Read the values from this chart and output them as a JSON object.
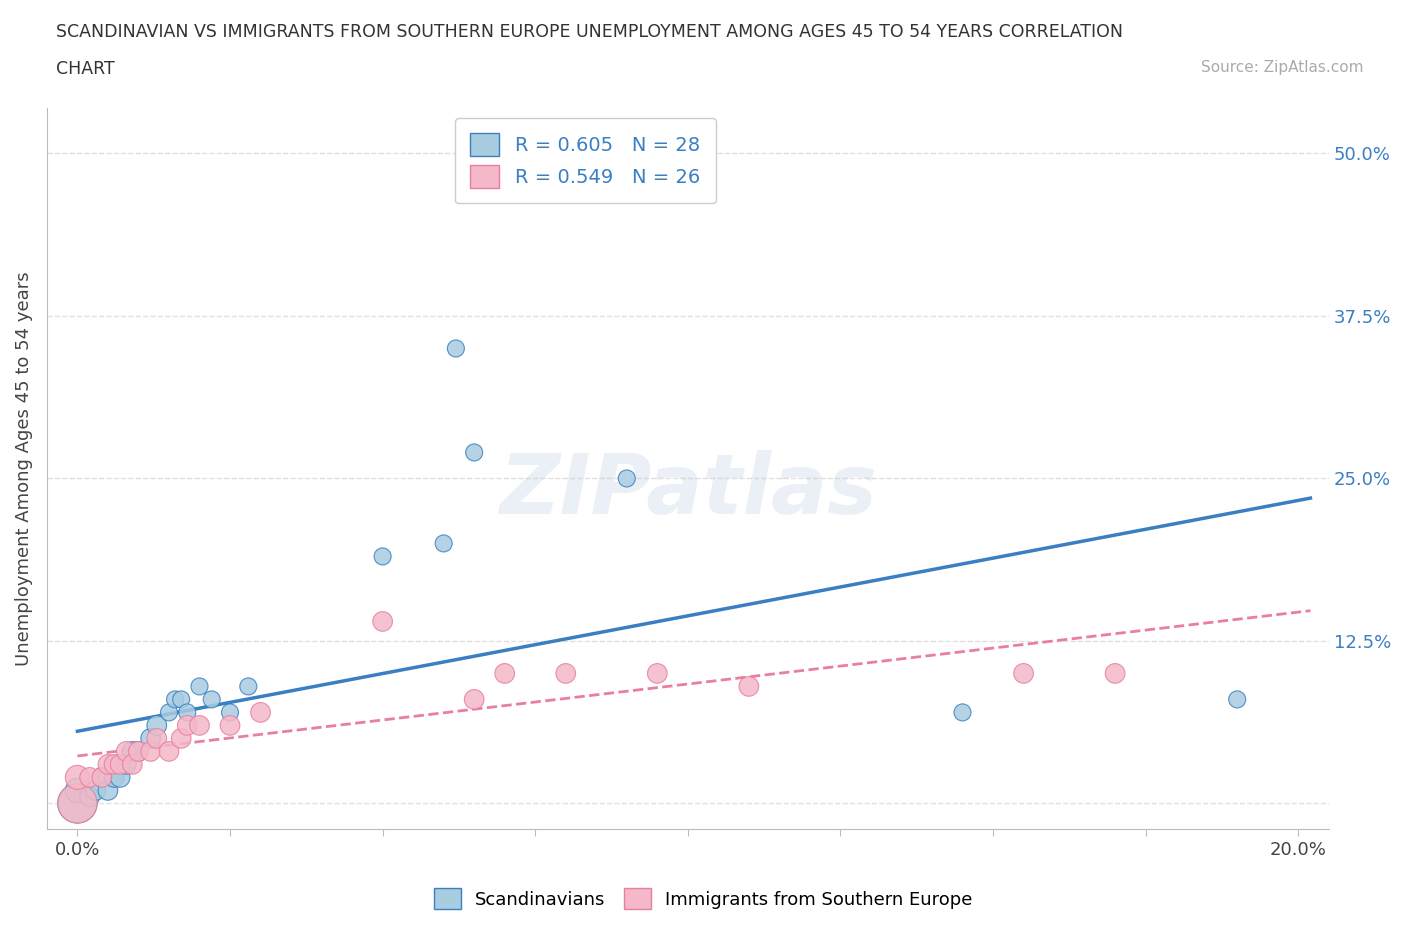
{
  "title_line1": "SCANDINAVIAN VS IMMIGRANTS FROM SOUTHERN EUROPE UNEMPLOYMENT AMONG AGES 45 TO 54 YEARS CORRELATION",
  "title_line2": "CHART",
  "source": "Source: ZipAtlas.com",
  "ylabel": "Unemployment Among Ages 45 to 54 years",
  "x_ticks": [
    0.0,
    0.025,
    0.05,
    0.075,
    0.1,
    0.125,
    0.15,
    0.175,
    0.2
  ],
  "y_ticks": [
    0.0,
    0.125,
    0.25,
    0.375,
    0.5
  ],
  "y_tick_labels": [
    "",
    "12.5%",
    "25.0%",
    "37.5%",
    "50.0%"
  ],
  "xlim": [
    -0.005,
    0.205
  ],
  "ylim": [
    -0.02,
    0.535
  ],
  "legend_scandinavians": "Scandinavians",
  "legend_immigrants": "Immigrants from Southern Europe",
  "R_scand": 0.605,
  "N_scand": 28,
  "R_immig": 0.549,
  "N_immig": 26,
  "color_scand": "#a8cce0",
  "color_immig": "#f4b8c8",
  "color_scand_line": "#3a7fc1",
  "color_immig_line": "#e87ea0",
  "background_color": "#ffffff",
  "grid_color": "#e0e0e0",
  "scand_x": [
    0.0,
    0.0,
    0.002,
    0.003,
    0.004,
    0.005,
    0.006,
    0.007,
    0.008,
    0.009,
    0.01,
    0.012,
    0.013,
    0.015,
    0.016,
    0.017,
    0.018,
    0.02,
    0.022,
    0.025,
    0.028,
    0.05,
    0.06,
    0.062,
    0.065,
    0.09,
    0.145,
    0.19
  ],
  "scand_y": [
    0.0,
    0.01,
    0.005,
    0.01,
    0.02,
    0.01,
    0.02,
    0.02,
    0.03,
    0.04,
    0.04,
    0.05,
    0.06,
    0.07,
    0.08,
    0.08,
    0.07,
    0.09,
    0.08,
    0.07,
    0.09,
    0.19,
    0.2,
    0.35,
    0.27,
    0.25,
    0.07,
    0.08
  ],
  "scand_s": [
    800,
    300,
    200,
    200,
    200,
    200,
    200,
    200,
    200,
    200,
    200,
    200,
    200,
    150,
    150,
    150,
    150,
    150,
    150,
    150,
    150,
    150,
    150,
    150,
    150,
    150,
    150,
    150
  ],
  "immig_x": [
    0.0,
    0.0,
    0.002,
    0.004,
    0.005,
    0.006,
    0.007,
    0.008,
    0.009,
    0.01,
    0.012,
    0.013,
    0.015,
    0.017,
    0.018,
    0.02,
    0.025,
    0.03,
    0.05,
    0.065,
    0.07,
    0.08,
    0.095,
    0.11,
    0.155,
    0.17
  ],
  "immig_y": [
    0.0,
    0.02,
    0.02,
    0.02,
    0.03,
    0.03,
    0.03,
    0.04,
    0.03,
    0.04,
    0.04,
    0.05,
    0.04,
    0.05,
    0.06,
    0.06,
    0.06,
    0.07,
    0.14,
    0.08,
    0.1,
    0.1,
    0.1,
    0.09,
    0.1,
    0.1
  ],
  "immig_s": [
    800,
    300,
    200,
    200,
    200,
    200,
    200,
    200,
    200,
    200,
    200,
    200,
    200,
    200,
    200,
    200,
    200,
    200,
    200,
    200,
    200,
    200,
    200,
    200,
    200,
    200
  ]
}
